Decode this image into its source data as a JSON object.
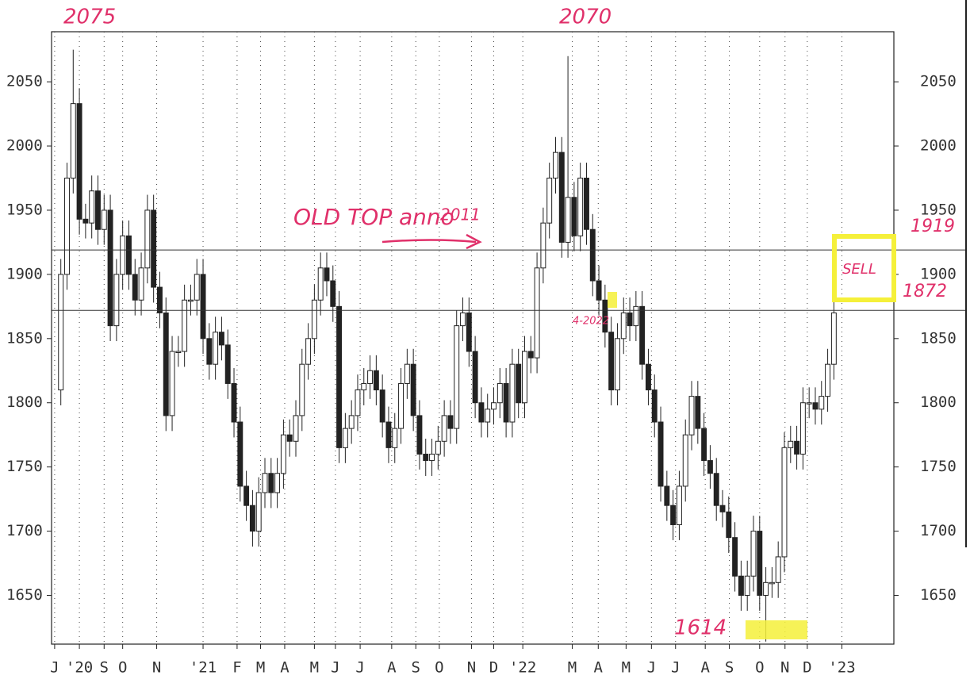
{
  "chart_data": {
    "type": "candlestick",
    "open": [
      1810,
      1900,
      1975,
      2033,
      1943,
      1940,
      1965,
      1935,
      1950,
      1860,
      1900,
      1930,
      1900,
      1880,
      1905,
      1950,
      1890,
      1870,
      1790,
      1840,
      1840,
      1880,
      1880,
      1900,
      1850,
      1830,
      1855,
      1845,
      1815,
      1785,
      1735,
      1720,
      1700,
      1730,
      1745,
      1730,
      1745,
      1775,
      1770,
      1790,
      1830,
      1850,
      1880,
      1905,
      1895,
      1875,
      1765,
      1780,
      1790,
      1810,
      1815,
      1825,
      1810,
      1785,
      1765,
      1780,
      1815,
      1830,
      1790,
      1760,
      1755,
      1760,
      1770,
      1790,
      1780,
      1860,
      1870,
      1840,
      1800,
      1785,
      1795,
      1800,
      1815,
      1785,
      1830,
      1800,
      1840,
      1835,
      1905,
      1940,
      1975,
      1995,
      1925,
      1960,
      1930,
      1975,
      1935,
      1895,
      1880,
      1855,
      1810,
      1850,
      1870,
      1860,
      1875,
      1830,
      1810,
      1785,
      1735,
      1720,
      1705,
      1735,
      1775,
      1805,
      1780,
      1755,
      1745,
      1720,
      1715,
      1695,
      1665,
      1650,
      1665,
      1700,
      1650,
      1660,
      1660,
      1680,
      1765,
      1770,
      1760,
      1800,
      1800,
      1795,
      1805,
      1830
    ],
    "high": [
      1912,
      1987,
      2075,
      2045,
      1955,
      1977,
      1977,
      1962,
      1962,
      1912,
      1942,
      1942,
      1912,
      1917,
      1962,
      1962,
      1902,
      1882,
      1852,
      1852,
      1892,
      1892,
      1912,
      1912,
      1862,
      1867,
      1867,
      1857,
      1827,
      1797,
      1747,
      1732,
      1742,
      1757,
      1757,
      1757,
      1787,
      1787,
      1802,
      1842,
      1862,
      1892,
      1917,
      1917,
      1907,
      1887,
      1792,
      1802,
      1822,
      1827,
      1837,
      1837,
      1822,
      1797,
      1792,
      1827,
      1842,
      1842,
      1802,
      1772,
      1772,
      1782,
      1802,
      1802,
      1872,
      1882,
      1882,
      1852,
      1812,
      1807,
      1812,
      1827,
      1827,
      1842,
      1842,
      1852,
      1852,
      1917,
      1952,
      1987,
      2007,
      2007,
      2070,
      1972,
      1987,
      1987,
      1947,
      1907,
      1892,
      1867,
      1862,
      1882,
      1882,
      1887,
      1887,
      1842,
      1822,
      1797,
      1747,
      1732,
      1747,
      1787,
      1817,
      1817,
      1792,
      1767,
      1757,
      1732,
      1727,
      1707,
      1677,
      1677,
      1712,
      1712,
      1672,
      1672,
      1692,
      1777,
      1782,
      1782,
      1812,
      1812,
      1812,
      1817,
      1842,
      1882
    ],
    "low": [
      1798,
      1888,
      1963,
      1931,
      1928,
      1928,
      1923,
      1923,
      1848,
      1848,
      1888,
      1888,
      1868,
      1868,
      1893,
      1878,
      1858,
      1778,
      1778,
      1828,
      1828,
      1868,
      1868,
      1838,
      1818,
      1818,
      1833,
      1803,
      1773,
      1723,
      1708,
      1688,
      1688,
      1718,
      1718,
      1718,
      1733,
      1758,
      1758,
      1778,
      1818,
      1838,
      1868,
      1883,
      1863,
      1753,
      1753,
      1768,
      1778,
      1798,
      1803,
      1798,
      1773,
      1753,
      1753,
      1768,
      1803,
      1778,
      1748,
      1743,
      1743,
      1748,
      1758,
      1768,
      1768,
      1848,
      1828,
      1788,
      1773,
      1773,
      1783,
      1788,
      1773,
      1773,
      1788,
      1788,
      1823,
      1823,
      1893,
      1928,
      1963,
      1913,
      1913,
      1918,
      1918,
      1923,
      1883,
      1868,
      1843,
      1798,
      1798,
      1838,
      1848,
      1848,
      1818,
      1798,
      1773,
      1723,
      1708,
      1693,
      1693,
      1723,
      1763,
      1768,
      1743,
      1733,
      1708,
      1703,
      1683,
      1653,
      1638,
      1638,
      1653,
      1638,
      1614,
      1648,
      1648,
      1668,
      1753,
      1748,
      1748,
      1788,
      1783,
      1783,
      1793,
      1818
    ],
    "close": [
      1900,
      1975,
      2033,
      1943,
      1940,
      1965,
      1935,
      1950,
      1860,
      1900,
      1930,
      1900,
      1880,
      1905,
      1950,
      1890,
      1870,
      1790,
      1840,
      1840,
      1880,
      1880,
      1900,
      1850,
      1830,
      1855,
      1845,
      1815,
      1785,
      1735,
      1720,
      1700,
      1730,
      1745,
      1730,
      1745,
      1775,
      1770,
      1790,
      1830,
      1850,
      1880,
      1905,
      1895,
      1875,
      1765,
      1780,
      1790,
      1810,
      1815,
      1825,
      1810,
      1785,
      1765,
      1780,
      1815,
      1830,
      1790,
      1760,
      1755,
      1760,
      1770,
      1790,
      1780,
      1860,
      1870,
      1840,
      1800,
      1785,
      1795,
      1800,
      1815,
      1785,
      1830,
      1800,
      1840,
      1835,
      1905,
      1940,
      1975,
      1995,
      1925,
      1960,
      1930,
      1975,
      1935,
      1895,
      1880,
      1855,
      1810,
      1850,
      1870,
      1860,
      1875,
      1830,
      1810,
      1785,
      1735,
      1720,
      1705,
      1735,
      1775,
      1805,
      1780,
      1755,
      1745,
      1720,
      1715,
      1695,
      1665,
      1650,
      1665,
      1700,
      1650,
      1660,
      1660,
      1680,
      1765,
      1770,
      1760,
      1800,
      1800,
      1795,
      1805,
      1830,
      1870
    ],
    "xlim": [
      -1.5,
      134.7
    ],
    "xticks": [
      {
        "value": -1,
        "label": "J"
      },
      {
        "value": 3,
        "label": "'20"
      },
      {
        "value": 7,
        "label": "S"
      },
      {
        "value": 10,
        "label": "O"
      },
      {
        "value": 15.5,
        "label": "N"
      },
      {
        "value": 23,
        "label": "'21"
      },
      {
        "value": 28.5,
        "label": "F"
      },
      {
        "value": 32.3,
        "label": "M"
      },
      {
        "value": 36.2,
        "label": "A"
      },
      {
        "value": 41,
        "label": "M"
      },
      {
        "value": 44.4,
        "label": "J"
      },
      {
        "value": 48.4,
        "label": "J"
      },
      {
        "value": 53.5,
        "label": "A"
      },
      {
        "value": 57.4,
        "label": "S"
      },
      {
        "value": 61.2,
        "label": "O"
      },
      {
        "value": 66.4,
        "label": "N"
      },
      {
        "value": 70,
        "label": "D"
      },
      {
        "value": 74.7,
        "label": "'22"
      },
      {
        "value": 82.7,
        "label": "M"
      },
      {
        "value": 86.9,
        "label": "A"
      },
      {
        "value": 91.4,
        "label": "M"
      },
      {
        "value": 95.5,
        "label": "J"
      },
      {
        "value": 99.4,
        "label": "J"
      },
      {
        "value": 104.2,
        "label": "A"
      },
      {
        "value": 108.1,
        "label": "S"
      },
      {
        "value": 113,
        "label": "O"
      },
      {
        "value": 117.1,
        "label": "N"
      },
      {
        "value": 120.7,
        "label": "D"
      },
      {
        "value": 126.3,
        "label": "'23"
      }
    ],
    "ylim": [
      1612,
      2089
    ],
    "yticks": [
      1650,
      1700,
      1750,
      1800,
      1850,
      1900,
      1950,
      2000,
      2050
    ],
    "levels": [
      1919,
      1872
    ],
    "annotations": [
      "2075",
      "2070",
      "OLD TOP anno",
      "2011",
      "4-2022",
      "SELL",
      "1614"
    ],
    "up_color": "#ffffff",
    "down_color": "#222222",
    "note_color": "#e0306a",
    "highlight_color": "#f5f03a"
  }
}
